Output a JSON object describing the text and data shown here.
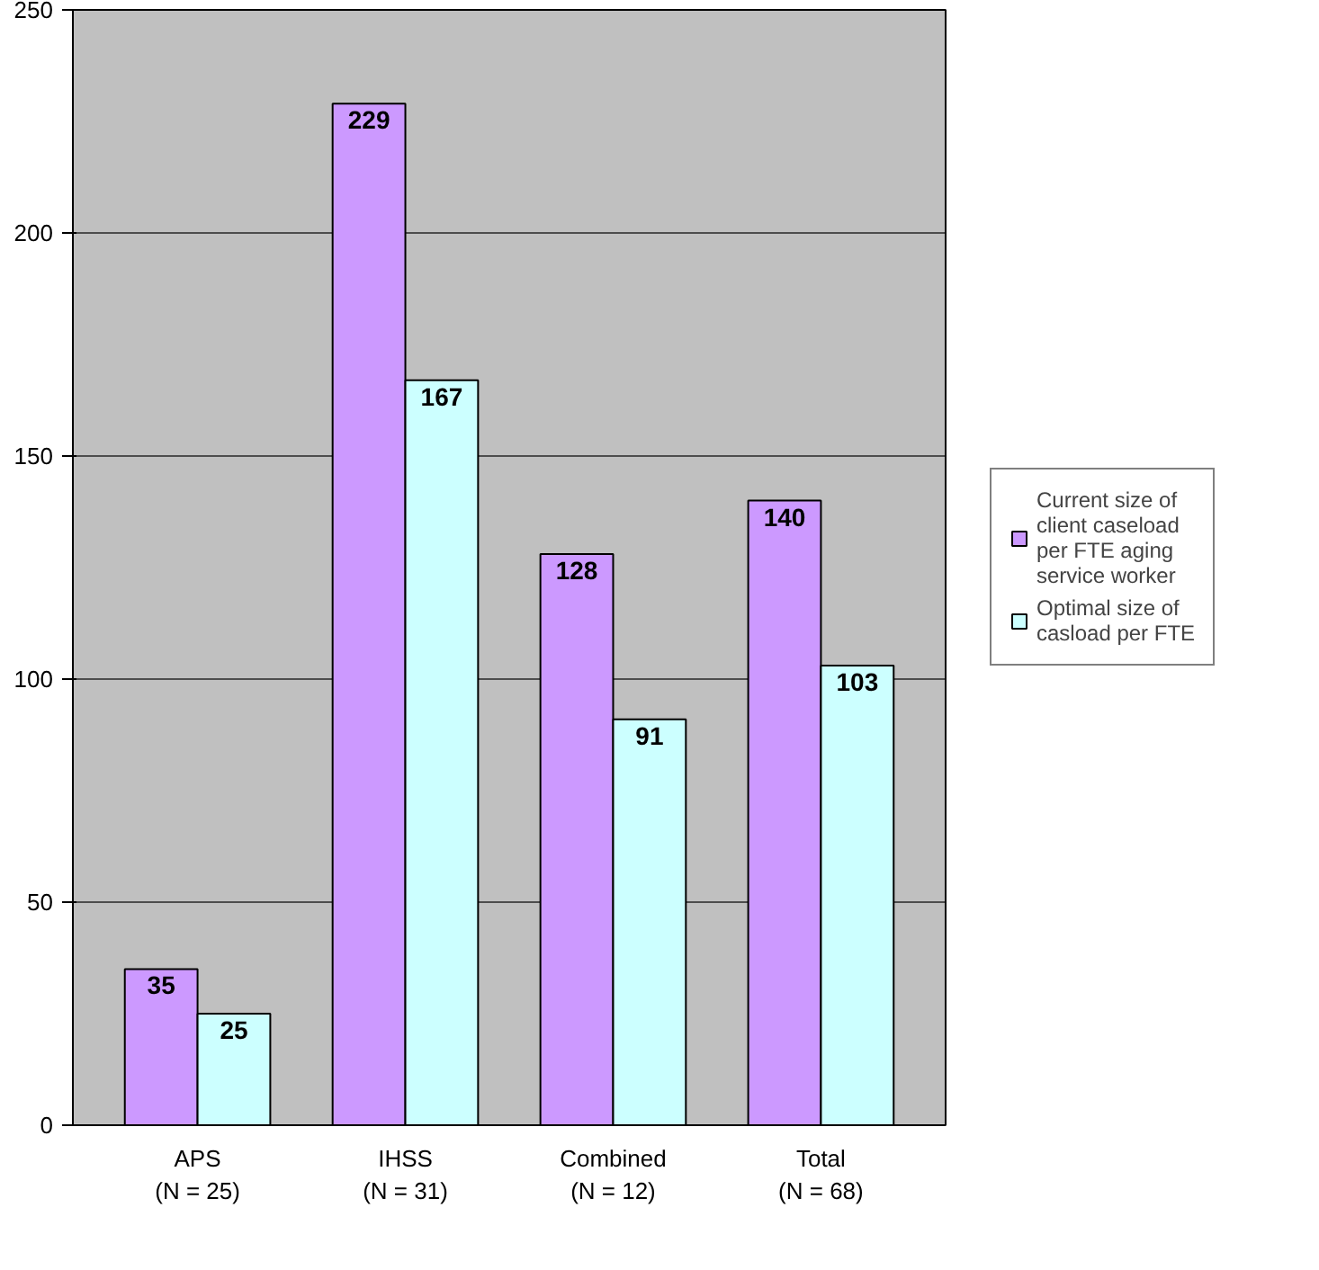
{
  "chart_data": {
    "type": "bar",
    "categories": [
      "APS\n(N = 25)",
      "IHSS\n(N = 31)",
      "Combined\n(N = 12)",
      "Total\n(N = 68)"
    ],
    "series": [
      {
        "name": "Current size of client caseload per FTE aging service worker",
        "color": "#cc99ff",
        "values": [
          35,
          229,
          128,
          140
        ]
      },
      {
        "name": "Optimal size of casload per FTE",
        "color": "#ccffff",
        "values": [
          25,
          167,
          91,
          103
        ]
      }
    ],
    "ylim": [
      0,
      250
    ],
    "yticks": [
      0,
      50,
      100,
      150,
      200,
      250
    ],
    "grid": "y",
    "legend": "right",
    "data_labels": true
  }
}
